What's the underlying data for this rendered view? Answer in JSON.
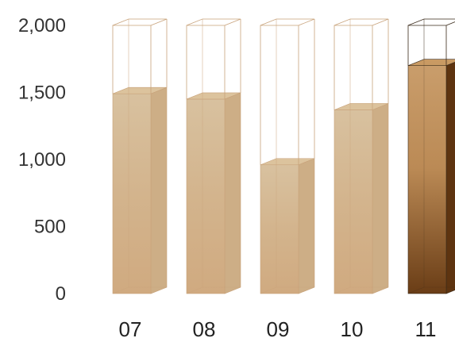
{
  "chart_data": {
    "type": "bar",
    "categories": [
      "07",
      "08",
      "09",
      "10",
      "11"
    ],
    "values": [
      1490,
      1450,
      960,
      1370,
      1700
    ],
    "ylim": [
      0,
      2000
    ],
    "yticks": [
      "0",
      "500",
      "1,000",
      "1,500",
      "2,000"
    ],
    "grid": false,
    "legend": "none",
    "highlight_index": 4,
    "colors": {
      "fill_light": "#d2b48c",
      "fill_light_top": "#dcc39d",
      "fill_light_side": "#cdae86",
      "fill_dark": "#a8743f",
      "fill_dark_gradient": [
        "#c89c6a",
        "#b9874f",
        "#6b3c14"
      ],
      "fill_dark_top": "#c99a63",
      "fill_dark_side": "#5e3410",
      "outline_light": "#c8a27a",
      "outline_dark": "#3a2a1a"
    }
  }
}
